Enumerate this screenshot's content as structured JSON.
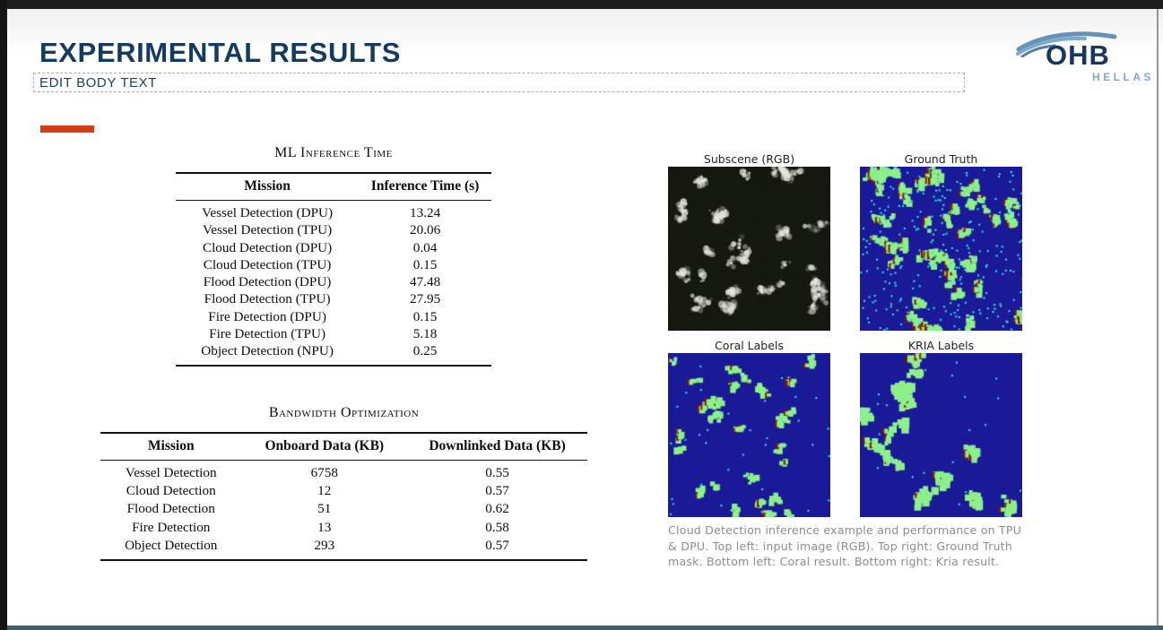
{
  "window": {
    "frame_color": "#1d1d1d",
    "bottom_bar_color": "#44606d"
  },
  "slide": {
    "title": "EXPERIMENTAL RESULTS",
    "title_color": "#143a5e",
    "body_placeholder": "EDIT BODY TEXT",
    "accent_bar_color": "#d63d15"
  },
  "logo": {
    "brand": "OHB",
    "region": "HELLAS",
    "brand_color": "#16375f",
    "accent_color": "#7fa9c9"
  },
  "tables": [
    {
      "caption": "ML Inference Time",
      "headers": [
        "Mission",
        "Inference Time (s)"
      ],
      "rows": [
        [
          "Vessel Detection (DPU)",
          "13.24"
        ],
        [
          "Vessel Detection (TPU)",
          "20.06"
        ],
        [
          "Cloud Detection (DPU)",
          "0.04"
        ],
        [
          "Cloud Detection (TPU)",
          "0.15"
        ],
        [
          "Flood Detection (DPU)",
          "47.48"
        ],
        [
          "Flood Detection (TPU)",
          "27.95"
        ],
        [
          "Fire Detection (DPU)",
          "0.15"
        ],
        [
          "Fire Detection (TPU)",
          "5.18"
        ],
        [
          "Object Detection (NPU)",
          "0.25"
        ]
      ]
    },
    {
      "caption": "Bandwidth Optimization",
      "headers": [
        "Mission",
        "Onboard Data (KB)",
        "Downlinked Data (KB)"
      ],
      "rows": [
        [
          "Vessel Detection",
          "6758",
          "0.55"
        ],
        [
          "Cloud Detection",
          "12",
          "0.57"
        ],
        [
          "Flood Detection",
          "51",
          "0.62"
        ],
        [
          "Fire Detection",
          "13",
          "0.58"
        ],
        [
          "Object Detection",
          "293",
          "0.57"
        ]
      ]
    }
  ],
  "figure": {
    "panels": [
      {
        "label": "Subscene (RGB)"
      },
      {
        "label": "Ground Truth"
      },
      {
        "label": "Coral Labels"
      },
      {
        "label": "KRIA Labels"
      }
    ],
    "caption": "Cloud Detection inference example and performance on TPU & DPU. Top left: input image (RGB). Top right: Ground Truth mask. Bottom left: Coral result. Bottom right: Kria result.",
    "palette": {
      "mask_background": "#1a1a99",
      "mask_cloud_green": "#8df08b",
      "mask_edge_red": "#8a1600",
      "mask_speck_cyan": "#3ce8e8",
      "rgb_background": "#14180f"
    }
  }
}
